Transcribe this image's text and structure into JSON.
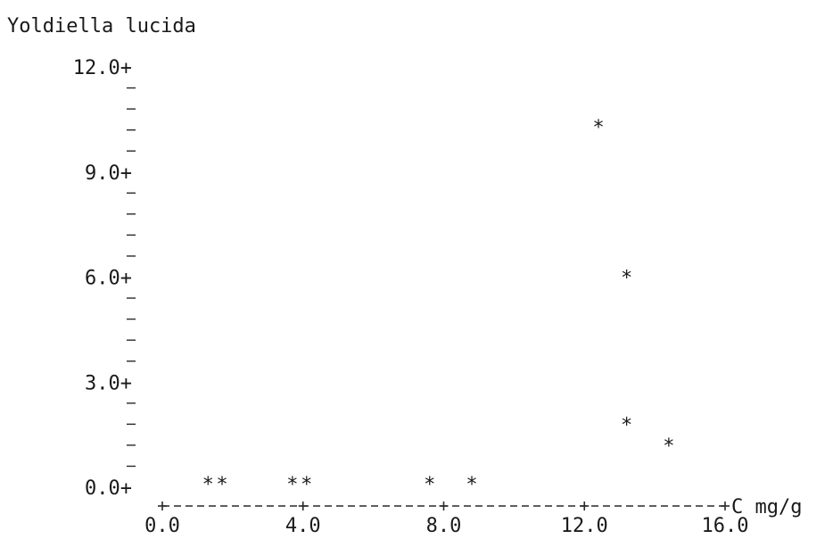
{
  "chart_data": {
    "type": "scatter",
    "title": "Yoldiella lucida",
    "xlabel": "C mg/g",
    "ylabel": "",
    "xlim": [
      0.0,
      16.0
    ],
    "ylim": [
      0.0,
      12.0
    ],
    "xticks": [
      "0.0",
      "4.0",
      "8.0",
      "12.0",
      "16.0"
    ],
    "yticks": [
      "0.0+",
      "3.0+",
      "6.0+",
      "9.0+",
      "12.0+"
    ],
    "marker": "*",
    "axis_style": "character-plot",
    "grid": false,
    "points": [
      {
        "x": 1.3,
        "y": 0.2
      },
      {
        "x": 1.7,
        "y": 0.2
      },
      {
        "x": 3.7,
        "y": 0.2
      },
      {
        "x": 4.1,
        "y": 0.2
      },
      {
        "x": 7.6,
        "y": 0.2
      },
      {
        "x": 8.8,
        "y": 0.2
      },
      {
        "x": 12.4,
        "y": 10.4
      },
      {
        "x": 13.2,
        "y": 6.1
      },
      {
        "x": 13.2,
        "y": 1.9
      },
      {
        "x": 14.4,
        "y": 1.3
      }
    ]
  }
}
